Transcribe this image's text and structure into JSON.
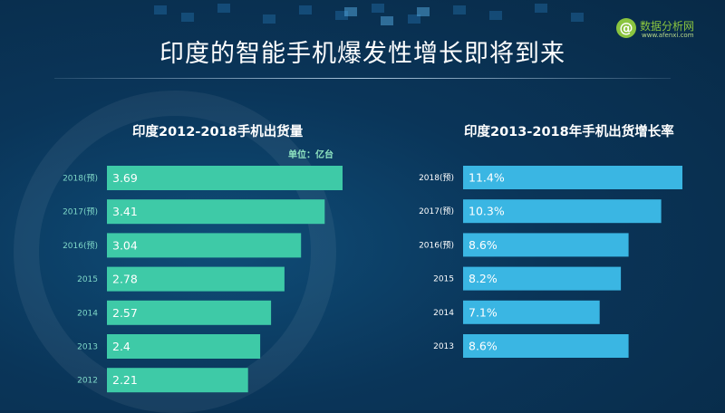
{
  "page": {
    "title": "印度的智能手机爆发性增长即将到来",
    "logo_mark": "@",
    "logo_text": "数据分析网",
    "logo_url": "www.afenxi.com"
  },
  "colors": {
    "left_bar": "#3ecaa7",
    "right_bar": "#3ab6e3",
    "left_category": "#7fd8c8",
    "right_category": "#ffffff"
  },
  "chart_data": [
    {
      "type": "bar",
      "orientation": "horizontal",
      "title": "印度2012-2018手机出货量",
      "unit": "单位：亿台",
      "categories": [
        "2018(预)",
        "2017(预)",
        "2016(预)",
        "2015",
        "2014",
        "2013",
        "2012"
      ],
      "values": [
        3.69,
        3.41,
        3.04,
        2.78,
        2.57,
        2.4,
        2.21
      ],
      "value_labels": [
        "3.69",
        "3.41",
        "3.04",
        "2.78",
        "2.57",
        "2.4",
        "2.21"
      ],
      "xlim": [
        0,
        3.69
      ],
      "grid": false
    },
    {
      "type": "bar",
      "orientation": "horizontal",
      "title": "印度2013-2018年手机出货增长率",
      "unit": "%",
      "categories": [
        "2018(预)",
        "2017(预)",
        "2016(预)",
        "2015",
        "2014",
        "2013"
      ],
      "values": [
        11.4,
        10.3,
        8.6,
        8.2,
        7.1,
        8.6
      ],
      "value_labels": [
        "11.4%",
        "10.3%",
        "8.6%",
        "8.2%",
        "7.1%",
        "8.6%"
      ],
      "xlim": [
        0,
        11.4
      ],
      "grid": false
    }
  ]
}
